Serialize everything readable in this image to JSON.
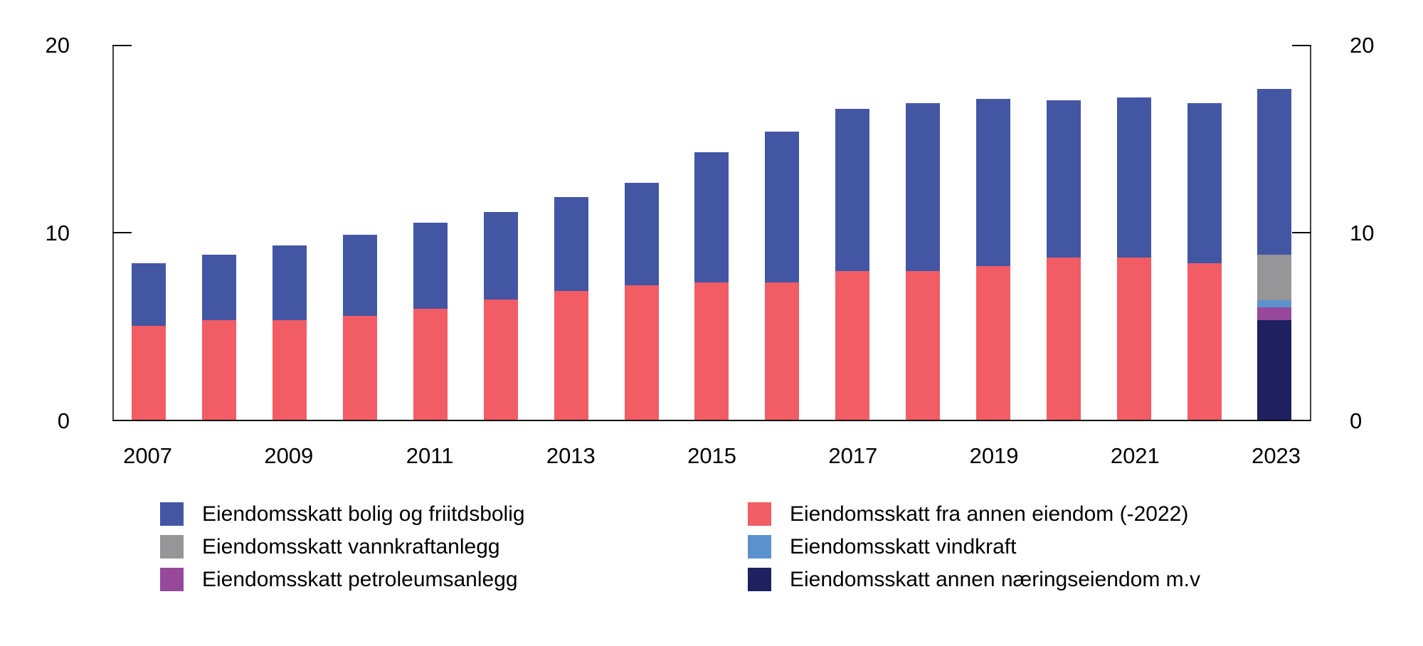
{
  "figure": {
    "background": "#ffffff",
    "text_color": "#000000"
  },
  "chart_data": {
    "type": "bar",
    "stacked": true,
    "title": "",
    "xlabel": "",
    "ylabel": "",
    "ylim": [
      0,
      20
    ],
    "y_ticks": [
      0,
      10,
      20
    ],
    "y_tick_labels": [
      "0",
      "10",
      "20"
    ],
    "y_axis_sides": "both",
    "grid": false,
    "categories": [
      "2007",
      "2008",
      "2009",
      "2010",
      "2011",
      "2012",
      "2013",
      "2014",
      "2015",
      "2016",
      "2017",
      "2018",
      "2019",
      "2020",
      "2021",
      "2022",
      "2023"
    ],
    "x_tick_labels": [
      "2007",
      "2009",
      "2011",
      "2013",
      "2015",
      "2017",
      "2019",
      "2021",
      "2023"
    ],
    "series": [
      {
        "name": "Eiendomsskatt fra annen eiendom (-2022)",
        "color": "#F25C64",
        "values": [
          5.0,
          5.3,
          5.3,
          5.55,
          5.9,
          6.4,
          6.85,
          7.15,
          7.3,
          7.3,
          7.9,
          7.9,
          8.2,
          8.65,
          8.65,
          8.35,
          0
        ]
      },
      {
        "name": "Eiendomsskatt annen næringseiendom m.v",
        "color": "#1E2060",
        "values": [
          0,
          0,
          0,
          0,
          0,
          0,
          0,
          0,
          0,
          0,
          0,
          0,
          0,
          0,
          0,
          0,
          5.3
        ]
      },
      {
        "name": "Eiendomsskatt petroleumsanlegg",
        "color": "#97489B",
        "values": [
          0,
          0,
          0,
          0,
          0,
          0,
          0,
          0,
          0,
          0,
          0,
          0,
          0,
          0,
          0,
          0,
          0.7
        ]
      },
      {
        "name": "Eiendomsskatt vindkraft",
        "color": "#5B92CE",
        "values": [
          0,
          0,
          0,
          0,
          0,
          0,
          0,
          0,
          0,
          0,
          0,
          0,
          0,
          0,
          0,
          0,
          0.35
        ]
      },
      {
        "name": "Eiendomsskatt vannkraftanlegg",
        "color": "#969597",
        "values": [
          0,
          0,
          0,
          0,
          0,
          0,
          0,
          0,
          0,
          0,
          0,
          0,
          0,
          0,
          0,
          0,
          2.45
        ]
      },
      {
        "name": "Eiendomsskatt bolig og friitdsbolig",
        "color": "#4256A4",
        "values": [
          3.35,
          3.5,
          4.0,
          4.3,
          4.6,
          4.65,
          5.0,
          5.45,
          6.95,
          8.05,
          8.65,
          8.95,
          8.9,
          8.35,
          8.5,
          8.5,
          8.8
        ]
      }
    ],
    "legend_position": "bottom-two-columns"
  },
  "legend": {
    "columns": [
      [
        {
          "label": "Eiendomsskatt bolig og friitdsbolig",
          "color": "#4256A4",
          "icon": "blue-swatch-icon"
        },
        {
          "label": "Eiendomsskatt vannkraftanlegg",
          "color": "#969597",
          "icon": "gray-swatch-icon"
        },
        {
          "label": "Eiendomsskatt petroleumsanlegg",
          "color": "#97489B",
          "icon": "purple-swatch-icon"
        }
      ],
      [
        {
          "label": "Eiendomsskatt fra annen eiendom (-2022)",
          "color": "#F25C64",
          "icon": "red-swatch-icon"
        },
        {
          "label": "Eiendomsskatt vindkraft",
          "color": "#5B92CE",
          "icon": "lightblue-swatch-icon"
        },
        {
          "label": "Eiendomsskatt annen næringseiendom m.v",
          "color": "#1E2060",
          "icon": "navy-swatch-icon"
        }
      ]
    ]
  }
}
